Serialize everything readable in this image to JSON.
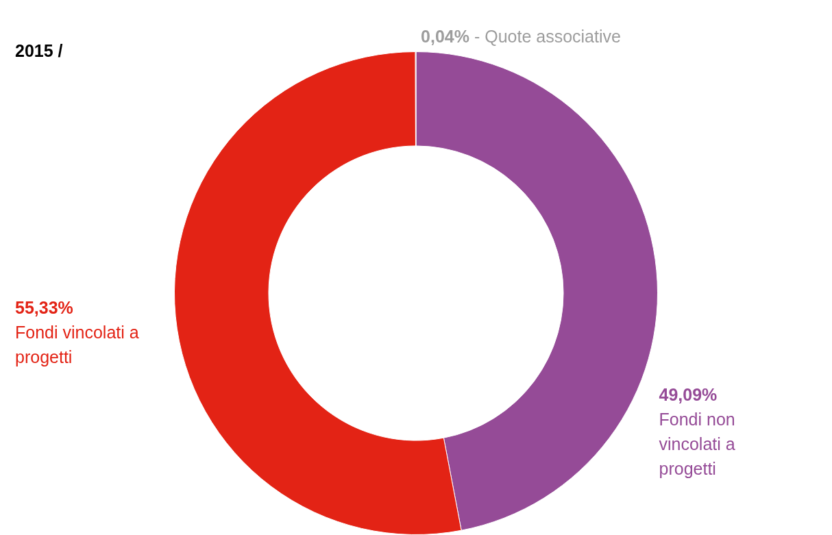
{
  "chart_data": {
    "type": "donut",
    "title": "2015 /",
    "categories": [
      "Fondi non vincolati a progetti",
      "Fondi vincolati a progetti",
      "- Quote associative"
    ],
    "values": [
      49.09,
      55.33,
      0.04
    ],
    "value_labels": [
      "49,09%",
      "55,33%",
      "0,04%"
    ],
    "colors": [
      "#954b97",
      "#e32315",
      "#9d9d9d"
    ]
  }
}
